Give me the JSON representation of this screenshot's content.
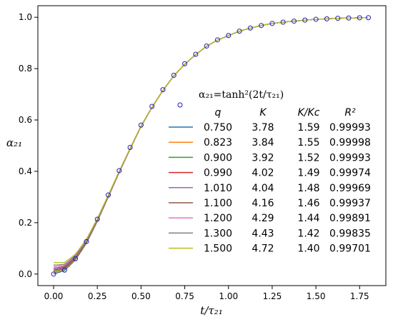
{
  "chart_data": {
    "type": "line",
    "xlabel": "t/τ₂₁",
    "ylabel": "α₂₁",
    "xlim": [
      -0.09,
      1.9
    ],
    "ylim": [
      -0.045,
      1.045
    ],
    "xticks": [
      "0.00",
      "0.25",
      "0.50",
      "0.75",
      "1.00",
      "1.25",
      "1.50",
      "1.75"
    ],
    "xtick_values": [
      0,
      0.25,
      0.5,
      0.75,
      1.0,
      1.25,
      1.5,
      1.75
    ],
    "yticks": [
      "0.0",
      "0.2",
      "0.4",
      "0.6",
      "0.8",
      "1.0"
    ],
    "ytick_values": [
      0,
      0.2,
      0.4,
      0.6,
      0.8,
      1.0
    ],
    "reference": {
      "label": "α₂₁=tanh²(2t/τ₂₁)",
      "x": [
        0.0,
        0.0625,
        0.125,
        0.1875,
        0.25,
        0.3125,
        0.375,
        0.4375,
        0.5,
        0.5625,
        0.625,
        0.6875,
        0.75,
        0.8125,
        0.875,
        0.9375,
        1.0,
        1.0625,
        1.125,
        1.1875,
        1.25,
        1.3125,
        1.375,
        1.4375,
        1.5,
        1.5625,
        1.625,
        1.6875,
        1.75,
        1.8
      ],
      "y": [
        0.0,
        0.0154,
        0.0596,
        0.1265,
        0.2135,
        0.3078,
        0.4028,
        0.493,
        0.58,
        0.653,
        0.718,
        0.774,
        0.819,
        0.856,
        0.888,
        0.912,
        0.929,
        0.946,
        0.958,
        0.968,
        0.976,
        0.981,
        0.985,
        0.989,
        0.992,
        0.994,
        0.996,
        0.997,
        0.998,
        0.9985
      ],
      "color": "#1f1fb4"
    },
    "legend_headers": [
      "q",
      "K",
      "K/Kc",
      "R²"
    ],
    "series": [
      {
        "q": "0.750",
        "K": "3.78",
        "K_Kc": "1.59",
        "R2": "0.99993",
        "color": "#1f77b4",
        "y0": 0.0
      },
      {
        "q": "0.823",
        "K": "3.84",
        "K_Kc": "1.55",
        "R2": "0.99998",
        "color": "#ff7f0e",
        "y0": 0.005
      },
      {
        "q": "0.900",
        "K": "3.92",
        "K_Kc": "1.52",
        "R2": "0.99993",
        "color": "#2ca02c",
        "y0": 0.01
      },
      {
        "q": "0.990",
        "K": "4.02",
        "K_Kc": "1.49",
        "R2": "0.99974",
        "color": "#d62728",
        "y0": 0.015
      },
      {
        "q": "1.010",
        "K": "4.04",
        "K_Kc": "1.48",
        "R2": "0.99969",
        "color": "#9467bd",
        "y0": 0.018
      },
      {
        "q": "1.100",
        "K": "4.16",
        "K_Kc": "1.46",
        "R2": "0.99937",
        "color": "#8c564b",
        "y0": 0.023
      },
      {
        "q": "1.200",
        "K": "4.29",
        "K_Kc": "1.44",
        "R2": "0.99891",
        "color": "#e377c2",
        "y0": 0.029
      },
      {
        "q": "1.300",
        "K": "4.43",
        "K_Kc": "1.42",
        "R2": "0.99835",
        "color": "#7f7f7f",
        "y0": 0.035
      },
      {
        "q": "1.500",
        "K": "4.72",
        "K_Kc": "1.40",
        "R2": "0.99701",
        "color": "#bcbd22",
        "y0": 0.045
      }
    ],
    "grid": false,
    "legend_position": "center-right"
  }
}
